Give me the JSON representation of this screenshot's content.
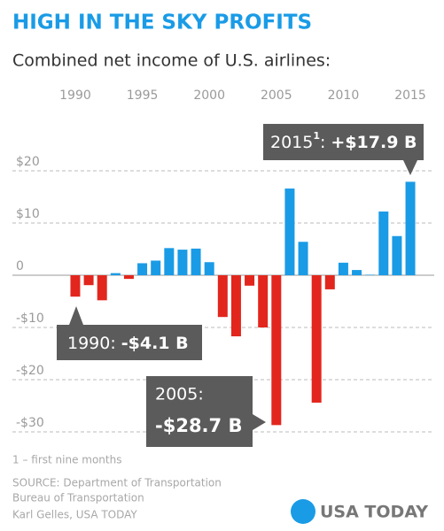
{
  "chart_data": {
    "type": "bar",
    "title": "HIGH IN THE SKY PROFITS",
    "subtitle": "Combined net income of U.S. airlines:",
    "x": [
      1990,
      1991,
      1992,
      1993,
      1994,
      1995,
      1996,
      1997,
      1998,
      1999,
      2000,
      2001,
      2002,
      2003,
      2004,
      2005,
      2006,
      2007,
      2008,
      2009,
      2010,
      2011,
      2012,
      2013,
      2014,
      2015
    ],
    "values": [
      -4.1,
      -1.9,
      -4.8,
      0.4,
      -0.7,
      2.3,
      2.8,
      5.2,
      4.9,
      5.1,
      2.5,
      -8.0,
      -11.7,
      -2.0,
      -10.0,
      -28.7,
      16.6,
      6.4,
      -24.4,
      -2.7,
      2.4,
      1.0,
      0.1,
      12.2,
      7.5,
      17.9
    ],
    "colors": {
      "positive": "#1a9be6",
      "negative": "#e2261d"
    },
    "xlim": [
      1989.5,
      2015.5
    ],
    "xticks": [
      1990,
      1995,
      2000,
      2005,
      2010,
      2015
    ],
    "ylim": [
      -33,
      23
    ],
    "yticks": [
      {
        "value": 20,
        "label": "$20"
      },
      {
        "value": 10,
        "label": "$10"
      },
      0,
      {
        "value": -10,
        "label": "-$10"
      },
      {
        "value": -20,
        "label": "-$20"
      },
      {
        "value": -30,
        "label": "-$30"
      }
    ],
    "grid": true,
    "annotations": [
      {
        "label": "1990:",
        "value": "-$4.1 B"
      },
      {
        "label": "2005:",
        "value": "-$28.7 B"
      },
      {
        "label": "2015",
        "sup": "1",
        "sep": ":",
        "value": "+$17.9 B"
      }
    ],
    "footnote": "1 – first nine months",
    "source": [
      "SOURCE: Department of Transportation",
      "Bureau of Transportation"
    ],
    "credit": "Karl Gelles, USA TODAY",
    "logo": "USA TODAY"
  }
}
